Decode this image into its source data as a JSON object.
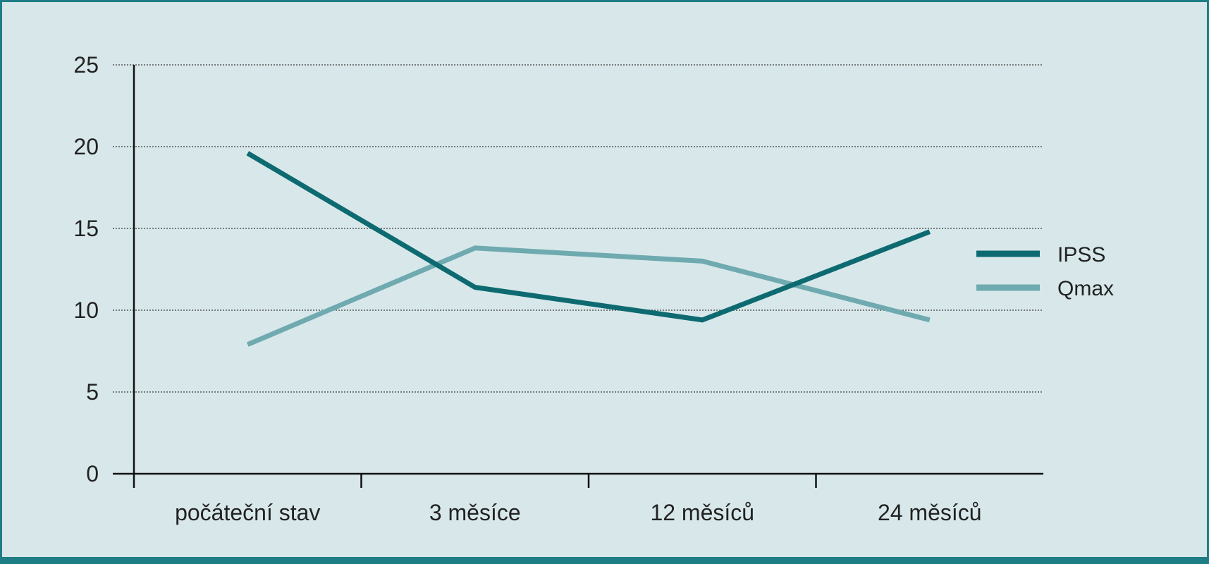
{
  "chart_data": {
    "type": "line",
    "title": "",
    "xlabel": "",
    "ylabel": "",
    "categories": [
      "počáteční stav",
      "3 měsíce",
      "12 měsíců",
      "24 měsíců"
    ],
    "ylim": [
      0,
      25
    ],
    "yticks": [
      0,
      5,
      10,
      15,
      20,
      25
    ],
    "grid": true,
    "legend_position": "right",
    "series": [
      {
        "name": "IPSS",
        "values": [
          19.6,
          11.4,
          9.4,
          14.8
        ],
        "color": "#0d6a70"
      },
      {
        "name": "Qmax",
        "values": [
          7.9,
          13.8,
          13.0,
          9.4
        ],
        "color": "#6faab0"
      }
    ]
  }
}
